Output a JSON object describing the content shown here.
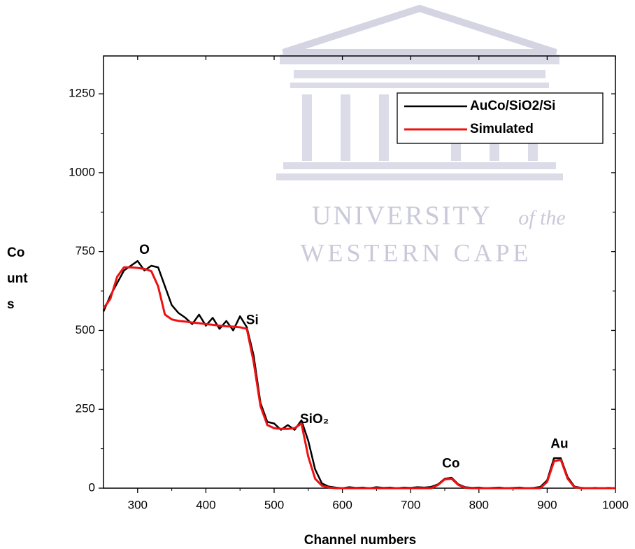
{
  "watermark": [
    "UNIVERSITY",
    "of the",
    "WESTERN CAPE"
  ],
  "chart_data": {
    "type": "line",
    "xlabel": "Channel numbers",
    "ylabel": "Counts",
    "xlim": [
      250,
      1000
    ],
    "ylim": [
      0,
      1370
    ],
    "xticks": [
      300,
      400,
      500,
      600,
      700,
      800,
      900,
      1000
    ],
    "yticks": [
      0,
      250,
      500,
      750,
      1000,
      1250
    ],
    "legend": "upper right",
    "x": [
      250,
      260,
      270,
      280,
      290,
      300,
      310,
      320,
      330,
      340,
      350,
      360,
      370,
      380,
      390,
      400,
      410,
      420,
      430,
      440,
      450,
      460,
      470,
      480,
      490,
      500,
      510,
      520,
      530,
      540,
      550,
      560,
      570,
      580,
      590,
      600,
      610,
      620,
      630,
      640,
      650,
      660,
      670,
      680,
      690,
      700,
      710,
      720,
      730,
      740,
      750,
      760,
      770,
      780,
      790,
      800,
      810,
      820,
      830,
      840,
      850,
      860,
      870,
      880,
      890,
      900,
      910,
      920,
      930,
      940,
      950,
      960,
      970,
      980,
      990,
      1000
    ],
    "series": [
      {
        "name": "AuCo/SiO2/Si",
        "color": "#000000",
        "width": 2.5,
        "values": [
          560,
          610,
          650,
          690,
          705,
          720,
          690,
          705,
          700,
          640,
          580,
          555,
          540,
          520,
          550,
          515,
          540,
          505,
          530,
          500,
          545,
          510,
          420,
          270,
          210,
          205,
          185,
          200,
          185,
          215,
          150,
          60,
          15,
          5,
          2,
          0,
          3,
          1,
          2,
          0,
          3,
          1,
          2,
          0,
          2,
          1,
          3,
          2,
          4,
          12,
          30,
          33,
          12,
          3,
          1,
          2,
          0,
          1,
          2,
          0,
          1,
          2,
          0,
          1,
          4,
          25,
          95,
          95,
          35,
          5,
          1,
          0,
          1,
          0,
          1,
          0
        ]
      },
      {
        "name": "Simulated",
        "color": "#ee1111",
        "width": 3,
        "values": [
          570,
          600,
          670,
          700,
          700,
          698,
          695,
          688,
          640,
          550,
          535,
          530,
          528,
          525,
          523,
          520,
          518,
          515,
          513,
          512,
          510,
          505,
          400,
          260,
          200,
          190,
          188,
          188,
          190,
          205,
          100,
          30,
          8,
          2,
          0,
          0,
          0,
          0,
          0,
          0,
          0,
          0,
          0,
          0,
          0,
          0,
          0,
          0,
          0,
          10,
          28,
          30,
          10,
          1,
          0,
          0,
          0,
          0,
          0,
          0,
          0,
          0,
          0,
          0,
          0,
          20,
          85,
          90,
          30,
          3,
          0,
          0,
          0,
          0,
          0,
          0
        ]
      }
    ],
    "annotations": [
      {
        "text": "O",
        "x": 310,
        "y": 754
      },
      {
        "text": "Si",
        "x": 468,
        "y": 531
      },
      {
        "text": "SiO₂",
        "x": 559,
        "y": 217
      },
      {
        "text": "Co",
        "x": 759,
        "y": 77
      },
      {
        "text": "Au",
        "x": 918,
        "y": 139
      }
    ]
  }
}
